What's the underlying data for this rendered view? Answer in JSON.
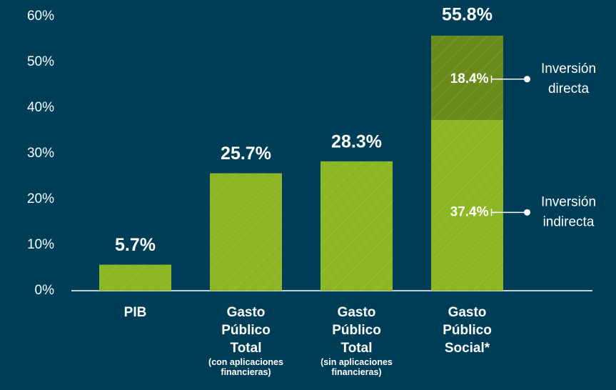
{
  "chart_data": {
    "type": "stacked_bar",
    "categories": [
      "PIB",
      "Gasto Público Total",
      "Gasto Público Total",
      "Gasto Público Social*"
    ],
    "subcategories": [
      null,
      "(con aplicaciones financieras)",
      "(sin aplicaciones financieras)",
      null
    ],
    "series": [
      {
        "name": "Inversión indirecta",
        "color": "#8cb624",
        "values": [
          5.7,
          25.7,
          28.3,
          37.4
        ],
        "value_labels": [
          "5.7%",
          "25.7%",
          "28.3%",
          "37.4%"
        ]
      },
      {
        "name": "Inversión directa",
        "color": "#6a8a1c",
        "values": [
          null,
          null,
          null,
          18.4
        ],
        "value_labels": [
          null,
          null,
          null,
          "18.4%"
        ]
      }
    ],
    "total": {
      "value": 55.8,
      "label": "55.8%"
    },
    "ylim": [
      0,
      60
    ],
    "yticks": [
      {
        "value": 0,
        "label": "0%"
      },
      {
        "value": 10,
        "label": "10%"
      },
      {
        "value": 20,
        "label": "20%"
      },
      {
        "value": 30,
        "label": "30%"
      },
      {
        "value": 40,
        "label": "40%"
      },
      {
        "value": 50,
        "label": "50%"
      },
      {
        "value": 60,
        "label": "60%"
      }
    ]
  }
}
